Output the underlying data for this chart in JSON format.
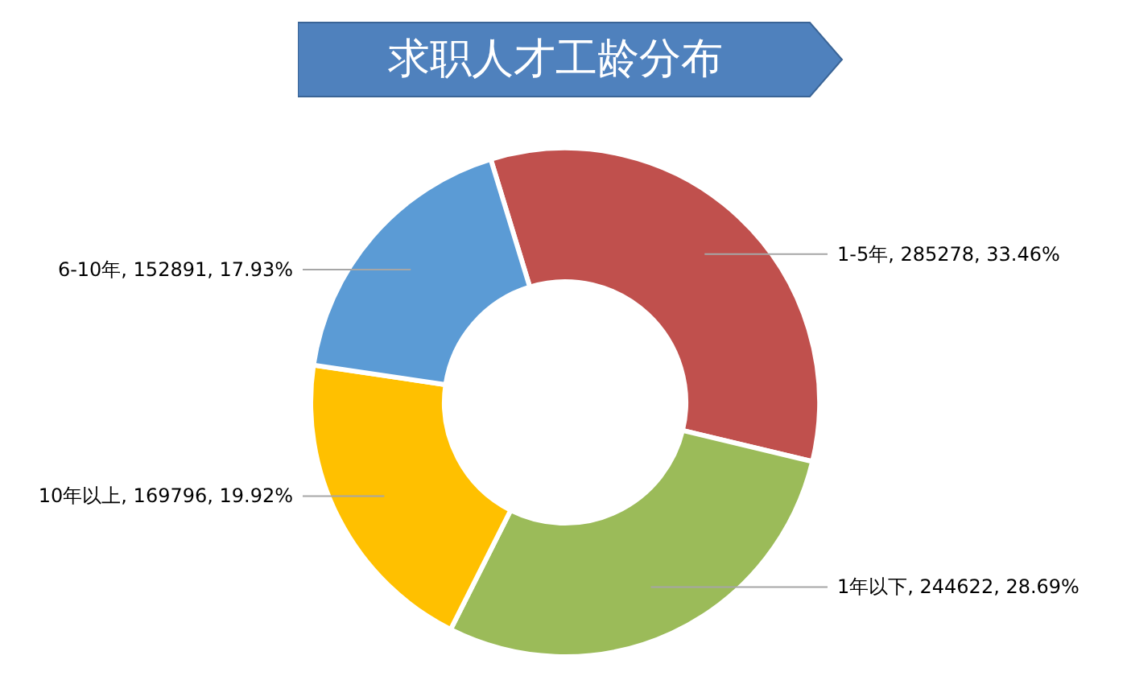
{
  "chart_data": {
    "type": "donut",
    "title": "求职人才工龄分布",
    "categories": [
      "1-5年",
      "1年以下",
      "10年以上",
      "6-10年"
    ],
    "values": [
      285278,
      244622,
      169796,
      152891
    ],
    "value_labels": [
      "285278, 33.46%",
      "244622, 28.69%",
      "169796, 19.92%",
      "152891, 17.93%"
    ],
    "colors": [
      "#c0504d",
      "#9bbb59",
      "#ffc000",
      "#5b9bd5"
    ],
    "legend": false
  }
}
